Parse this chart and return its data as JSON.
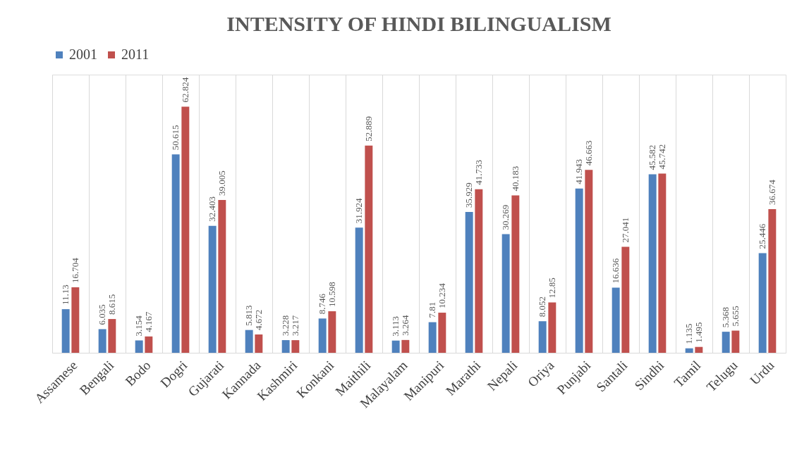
{
  "chart_data": {
    "type": "bar",
    "title": "INTENSITY OF HINDI BILINGUALISM",
    "categories": [
      "Assamese",
      "Bengali",
      "Bodo",
      "Dogri",
      "Gujarati",
      "Kannada",
      "Kashmiri",
      "Konkani",
      "Maithili",
      "Malayalam",
      "Manipuri",
      "Marathi",
      "Nepali",
      "Oriya",
      "Punjabi",
      "Santali",
      "Sindhi",
      "Tamil",
      "Telugu",
      "Urdu"
    ],
    "series": [
      {
        "name": "2001",
        "color": "#4f81bd",
        "values": [
          11.13,
          6.035,
          3.154,
          50.615,
          32.403,
          5.813,
          3.228,
          8.746,
          31.924,
          3.113,
          7.81,
          35.929,
          30.269,
          8.052,
          41.943,
          16.636,
          45.582,
          1.135,
          5.368,
          25.446
        ]
      },
      {
        "name": "2011",
        "color": "#c0504d",
        "values": [
          16.704,
          8.615,
          4.167,
          62.824,
          39.005,
          4.672,
          3.217,
          10.598,
          52.889,
          3.264,
          10.234,
          41.733,
          40.183,
          12.85,
          46.663,
          27.041,
          45.742,
          1.495,
          5.655,
          36.674
        ]
      }
    ],
    "data_labels": true,
    "legend": "top",
    "grid": "x",
    "tick_labels": "x"
  }
}
